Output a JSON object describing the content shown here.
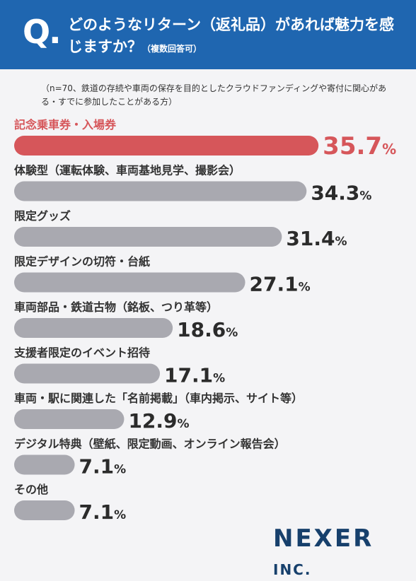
{
  "header": {
    "q_mark": "Q.",
    "question": "どのようなリターン（返礼品）があれば魅力を感じますか？",
    "question_suffix": "（複数回答可）"
  },
  "note": "（n=70、鉄道の存続や車両の保存を目的としたクラウドファンディングや寄付に関心がある・すでに参加したことがある方）",
  "logo": {
    "main": "NEXER",
    "sub": "INC."
  },
  "colors": {
    "highlight": "#d6565a",
    "bar": "#a9a9b0",
    "header": "#1f66b0"
  },
  "chart_data": {
    "type": "bar",
    "orientation": "horizontal",
    "unit": "%",
    "categories": [
      "記念乗車券・入場券",
      "体験型（運転体験、車両基地見学、撮影会）",
      "限定グッズ",
      "限定デザインの切符・台紙",
      "車両部品・鉄道古物（銘板、つり革等）",
      "支援者限定のイベント招待",
      "車両・駅に関連した「名前掲載」（車内掲示、サイト等）",
      "デジタル特典（壁紙、限定動画、オンライン報告会）",
      "その他"
    ],
    "values": [
      35.7,
      34.3,
      31.4,
      27.1,
      18.6,
      17.1,
      12.9,
      7.1,
      7.1
    ],
    "highlight_index": 0
  }
}
